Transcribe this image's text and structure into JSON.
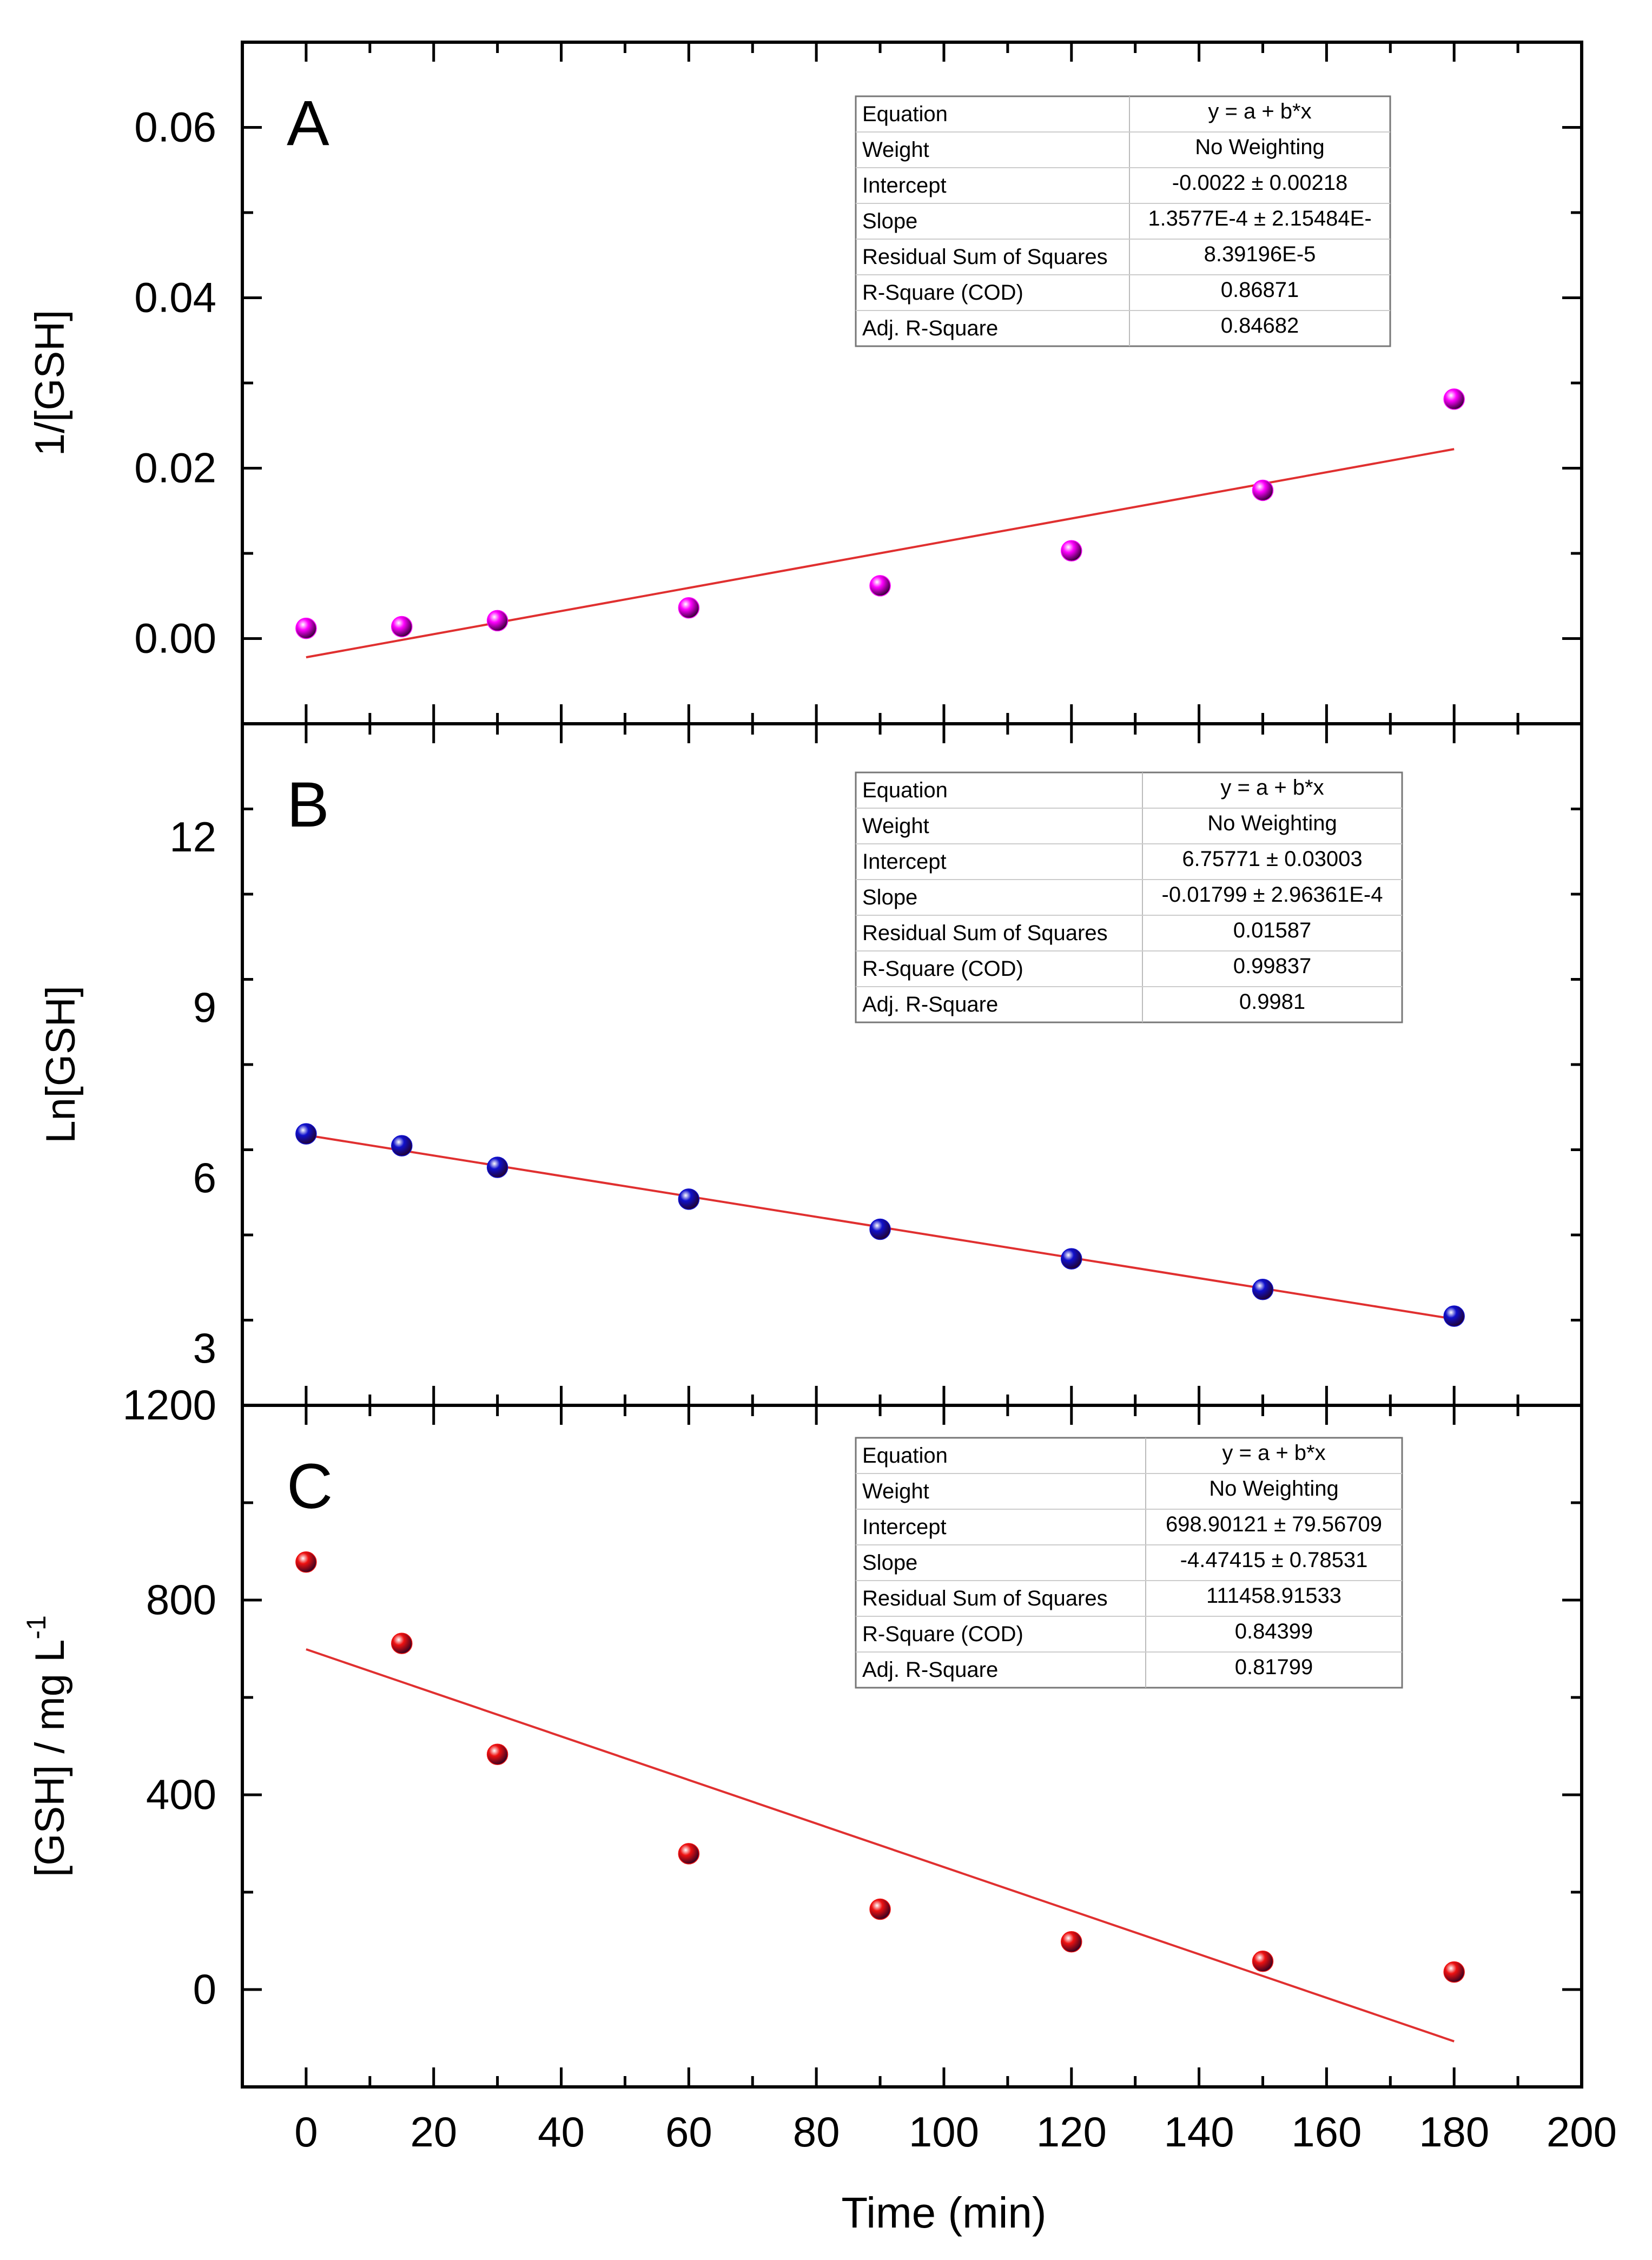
{
  "figure": {
    "xlabel": "Time (min)",
    "x_ticks": [
      0,
      20,
      40,
      60,
      80,
      100,
      120,
      140,
      160,
      180,
      200
    ],
    "xlim": [
      -10,
      200
    ]
  },
  "fit_table_headers": [
    "Equation",
    "Weight",
    "Intercept",
    "Slope",
    "Residual Sum of Squares",
    "R-Square (COD)",
    "Adj. R-Square"
  ],
  "chart_data": [
    {
      "type": "scatter",
      "panel_label": "A",
      "ylabel": "1/[GSH]",
      "ylim": [
        -0.01,
        0.07
      ],
      "y_ticks": [
        0.0,
        0.02,
        0.04,
        0.06
      ],
      "y_tick_labels": [
        "0.00",
        "0.02",
        "0.04",
        "0.06"
      ],
      "marker_color": "#ff00ff",
      "fit_color": "#e03030",
      "series": [
        {
          "name": "1/[GSH]",
          "x": [
            0,
            15,
            30,
            60,
            90,
            120,
            150,
            180
          ],
          "y": [
            0.0012,
            0.0014,
            0.0021,
            0.0036,
            0.0062,
            0.0103,
            0.0174,
            0.0281
          ]
        }
      ],
      "fit": {
        "intercept": -0.0022,
        "slope": 0.00013577,
        "x_range": [
          0,
          180
        ]
      },
      "fit_table_values": [
        "y = a + b*x",
        "No Weighting",
        "-0.0022 ± 0.00218",
        "1.3577E-4 ± 2.15484E-",
        "8.39196E-5",
        "0.86871",
        "0.84682"
      ]
    },
    {
      "type": "scatter",
      "panel_label": "B",
      "ylabel": "Ln[GSH]",
      "ylim": [
        2,
        14
      ],
      "y_ticks": [
        3,
        6,
        9,
        12
      ],
      "y_tick_labels": [
        "3",
        "6",
        "9",
        "12"
      ],
      "marker_color": "#1010cc",
      "fit_color": "#e03030",
      "series": [
        {
          "name": "Ln[GSH]",
          "x": [
            0,
            15,
            30,
            60,
            90,
            120,
            150,
            180
          ],
          "y": [
            6.78,
            6.57,
            6.19,
            5.63,
            5.1,
            4.58,
            4.04,
            3.57
          ]
        }
      ],
      "fit": {
        "intercept": 6.75771,
        "slope": -0.01799,
        "x_range": [
          0,
          180
        ]
      },
      "fit_table_values": [
        "y = a + b*x",
        "No Weighting",
        "6.75771 ± 0.03003",
        "-0.01799 ± 2.96361E-4",
        "0.01587",
        "0.99837",
        "0.9981"
      ]
    },
    {
      "type": "scatter",
      "panel_label": "C",
      "ylabel": "[GSH] / mg L",
      "ylabel_superscript": "-1",
      "ylim": [
        -200,
        1200
      ],
      "y_ticks": [
        0,
        400,
        800,
        1200
      ],
      "y_tick_labels": [
        "0",
        "400",
        "800",
        "1200"
      ],
      "marker_color": "#ee1111",
      "fit_color": "#e03030",
      "series": [
        {
          "name": "[GSH]",
          "x": [
            0,
            15,
            30,
            60,
            90,
            120,
            150,
            180
          ],
          "y": [
            878,
            711,
            483,
            279,
            165,
            98,
            58,
            36
          ]
        }
      ],
      "fit": {
        "intercept": 698.90121,
        "slope": -4.47415,
        "x_range": [
          0,
          180
        ]
      },
      "fit_table_values": [
        "y = a + b*x",
        "No Weighting",
        "698.90121 ± 79.56709",
        "-4.47415 ± 0.78531",
        "111458.91533",
        "0.84399",
        "0.81799"
      ]
    }
  ]
}
